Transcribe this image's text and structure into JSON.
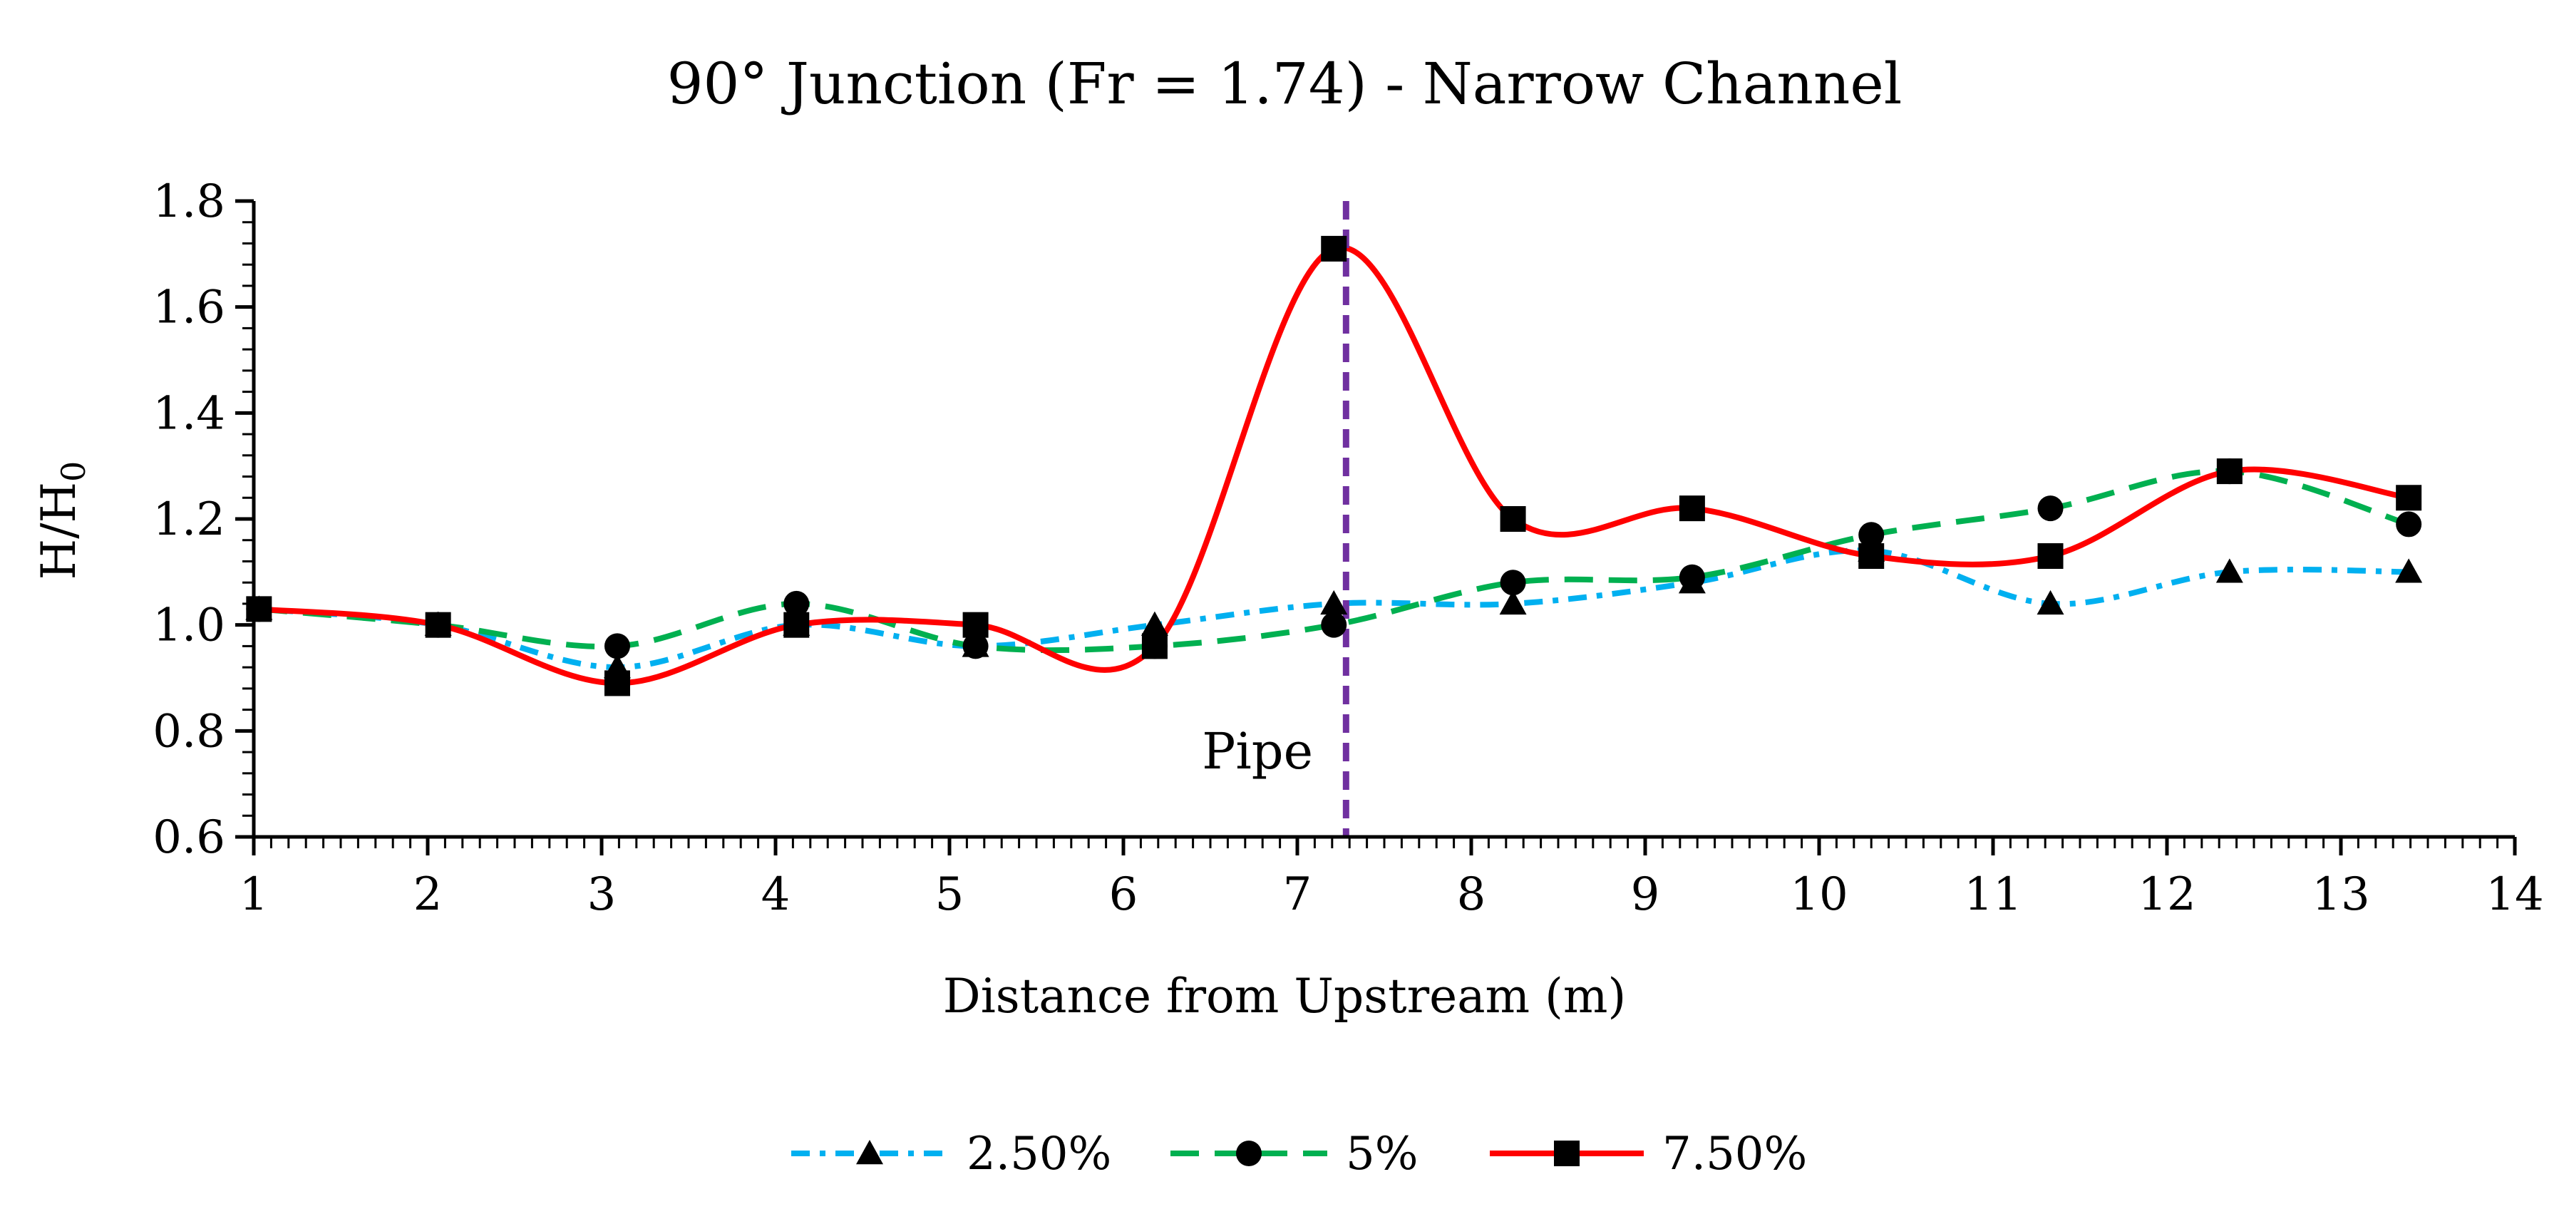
{
  "chart_data": {
    "type": "line",
    "title": "90° Junction (Fr = 1.74) - Narrow Channel",
    "xlabel": "Distance from Upstream (m)",
    "ylabel": "H/H",
    "ylabel_subscript": "0",
    "xlim": [
      1,
      14
    ],
    "ylim": [
      0.6,
      1.8
    ],
    "xticks": [
      1,
      2,
      3,
      4,
      5,
      6,
      7,
      8,
      9,
      10,
      11,
      12,
      13,
      14
    ],
    "yticks": [
      0.6,
      0.8,
      1.0,
      1.2,
      1.4,
      1.6,
      1.8
    ],
    "ytick_labels": [
      "0.6",
      "0.8",
      "1.0",
      "1.2",
      "1.4",
      "1.6",
      "1.8"
    ],
    "vline": {
      "x": 7.28,
      "label": "Pipe",
      "color": "#7030a0"
    },
    "legend_position": "bottom-center",
    "series": [
      {
        "name": "2.50%",
        "color": "#00b0f0",
        "line_style": "dash-dot",
        "marker": "triangle",
        "x": [
          1.03,
          2.06,
          3.09,
          4.12,
          5.15,
          6.18,
          7.21,
          8.24,
          9.27,
          10.3,
          11.33,
          12.36,
          13.39
        ],
        "y": [
          1.03,
          1.0,
          0.92,
          1.0,
          0.96,
          1.0,
          1.04,
          1.04,
          1.08,
          1.14,
          1.04,
          1.1,
          1.1
        ]
      },
      {
        "name": "5%",
        "color": "#00b050",
        "line_style": "dash",
        "marker": "circle",
        "x": [
          1.03,
          2.06,
          3.09,
          4.12,
          5.15,
          6.18,
          7.21,
          8.24,
          9.27,
          10.3,
          11.33,
          12.36,
          13.39
        ],
        "y": [
          1.03,
          1.0,
          0.96,
          1.04,
          0.96,
          0.96,
          1.0,
          1.08,
          1.09,
          1.17,
          1.22,
          1.29,
          1.19
        ]
      },
      {
        "name": "7.50%",
        "color": "#ff0000",
        "line_style": "solid",
        "marker": "square",
        "x": [
          1.03,
          2.06,
          3.09,
          4.12,
          5.15,
          6.18,
          7.21,
          8.24,
          9.27,
          10.3,
          11.33,
          12.36,
          13.39
        ],
        "y": [
          1.03,
          1.0,
          0.89,
          1.0,
          1.0,
          0.96,
          1.71,
          1.2,
          1.22,
          1.13,
          1.13,
          1.29,
          1.24
        ]
      }
    ]
  }
}
